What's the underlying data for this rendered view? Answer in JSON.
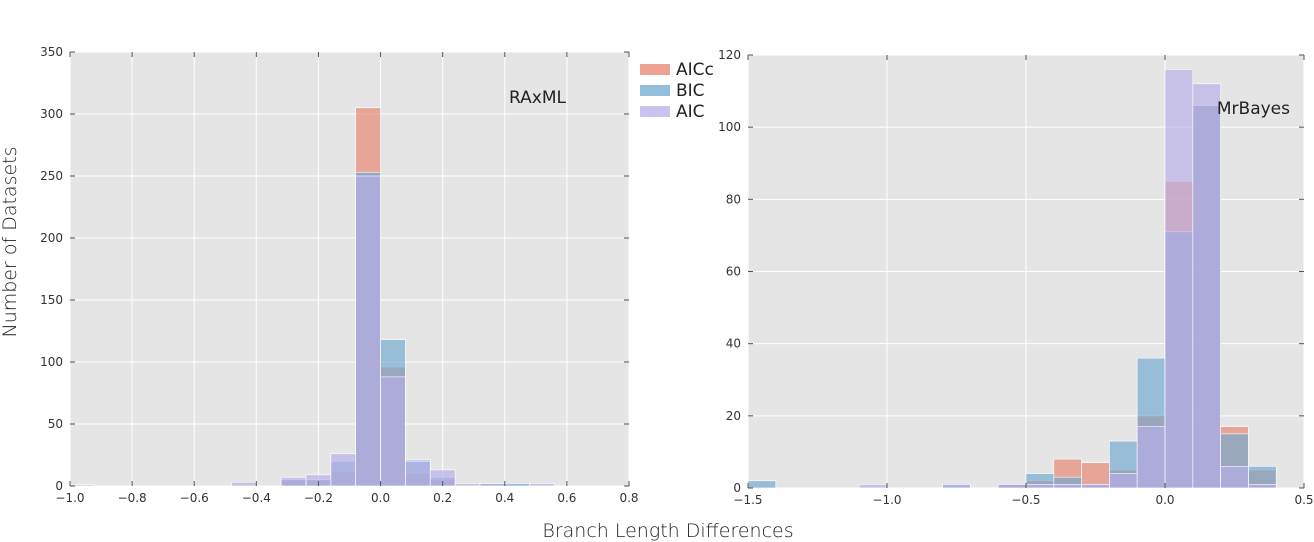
{
  "figure": {
    "ylabel": "Number of Datasets",
    "xlabel": "Branch Length Differences"
  },
  "legend": {
    "placement": "between-panels-top",
    "items": [
      {
        "label": "AICc",
        "color": "#e8836f"
      },
      {
        "label": "BIC",
        "color": "#6fa8d0"
      },
      {
        "label": "AIC",
        "color": "#b9aee8"
      }
    ]
  },
  "chart_data": [
    {
      "type": "bar",
      "panel_label": "RAxML",
      "xlim": [
        -1.0,
        0.8
      ],
      "ylim": [
        0,
        350
      ],
      "xticks": [
        "−1.0",
        "−0.8",
        "−0.6",
        "−0.4",
        "−0.2",
        "0.0",
        "0.2",
        "0.4",
        "0.6",
        "0.8"
      ],
      "yticks": [
        "0",
        "50",
        "100",
        "150",
        "200",
        "250",
        "300",
        "350"
      ],
      "xtick_values": [
        -1.0,
        -0.8,
        -0.6,
        -0.4,
        -0.2,
        0.0,
        0.2,
        0.4,
        0.6,
        0.8
      ],
      "ytick_values": [
        0,
        50,
        100,
        150,
        200,
        250,
        300,
        350
      ],
      "grid": true,
      "series": [
        {
          "name": "AICc",
          "bins": [
            {
              "x0": -0.32,
              "x1": -0.24,
              "y": 5
            },
            {
              "x0": -0.24,
              "x1": -0.16,
              "y": 5
            },
            {
              "x0": -0.16,
              "x1": -0.08,
              "y": 12
            },
            {
              "x0": -0.08,
              "x1": 0.0,
              "y": 305
            },
            {
              "x0": 0.0,
              "x1": 0.08,
              "y": 96
            },
            {
              "x0": 0.08,
              "x1": 0.16,
              "y": 10
            },
            {
              "x0": 0.16,
              "x1": 0.24,
              "y": 5
            }
          ]
        },
        {
          "name": "BIC",
          "bins": [
            {
              "x0": -0.32,
              "x1": -0.24,
              "y": 5
            },
            {
              "x0": -0.24,
              "x1": -0.16,
              "y": 5
            },
            {
              "x0": -0.16,
              "x1": -0.08,
              "y": 20
            },
            {
              "x0": -0.08,
              "x1": 0.0,
              "y": 253
            },
            {
              "x0": 0.0,
              "x1": 0.08,
              "y": 118
            },
            {
              "x0": 0.08,
              "x1": 0.16,
              "y": 21
            },
            {
              "x0": 0.16,
              "x1": 0.24,
              "y": 7
            },
            {
              "x0": 0.32,
              "x1": 0.4,
              "y": 2
            },
            {
              "x0": 0.4,
              "x1": 0.48,
              "y": 2
            }
          ]
        },
        {
          "name": "AIC",
          "bins": [
            {
              "x0": -1.0,
              "x1": -0.92,
              "y": 1
            },
            {
              "x0": -0.48,
              "x1": -0.4,
              "y": 3
            },
            {
              "x0": -0.32,
              "x1": -0.24,
              "y": 7
            },
            {
              "x0": -0.24,
              "x1": -0.16,
              "y": 9
            },
            {
              "x0": -0.16,
              "x1": -0.08,
              "y": 26
            },
            {
              "x0": -0.08,
              "x1": 0.0,
              "y": 250
            },
            {
              "x0": 0.0,
              "x1": 0.08,
              "y": 88
            },
            {
              "x0": 0.08,
              "x1": 0.16,
              "y": 20
            },
            {
              "x0": 0.16,
              "x1": 0.24,
              "y": 13
            },
            {
              "x0": 0.24,
              "x1": 0.32,
              "y": 2
            },
            {
              "x0": 0.32,
              "x1": 0.4,
              "y": 2
            },
            {
              "x0": 0.48,
              "x1": 0.56,
              "y": 2
            }
          ]
        }
      ]
    },
    {
      "type": "bar",
      "panel_label": "MrBayes",
      "xlim": [
        -1.5,
        0.5
      ],
      "ylim": [
        0,
        120
      ],
      "xticks": [
        "−1.5",
        "−1.0",
        "−0.5",
        "0.0",
        "0.5"
      ],
      "yticks": [
        "0",
        "20",
        "40",
        "60",
        "80",
        "100",
        "120"
      ],
      "xtick_values": [
        -1.5,
        -1.0,
        -0.5,
        0.0,
        0.5
      ],
      "ytick_values": [
        0,
        20,
        40,
        60,
        80,
        100,
        120
      ],
      "grid": true,
      "series": [
        {
          "name": "AICc",
          "bins": [
            {
              "x0": -0.6,
              "x1": -0.5,
              "y": 1
            },
            {
              "x0": -0.5,
              "x1": -0.4,
              "y": 2
            },
            {
              "x0": -0.4,
              "x1": -0.3,
              "y": 8
            },
            {
              "x0": -0.3,
              "x1": -0.2,
              "y": 7
            },
            {
              "x0": -0.2,
              "x1": -0.1,
              "y": 5
            },
            {
              "x0": -0.1,
              "x1": 0.0,
              "y": 20
            },
            {
              "x0": 0.0,
              "x1": 0.1,
              "y": 85
            },
            {
              "x0": 0.1,
              "x1": 0.2,
              "y": 106
            },
            {
              "x0": 0.2,
              "x1": 0.3,
              "y": 17
            },
            {
              "x0": 0.3,
              "x1": 0.4,
              "y": 5
            }
          ]
        },
        {
          "name": "BIC",
          "bins": [
            {
              "x0": -1.5,
              "x1": -1.4,
              "y": 2
            },
            {
              "x0": -0.8,
              "x1": -0.7,
              "y": 1
            },
            {
              "x0": -0.6,
              "x1": -0.5,
              "y": 1
            },
            {
              "x0": -0.5,
              "x1": -0.4,
              "y": 4
            },
            {
              "x0": -0.4,
              "x1": -0.3,
              "y": 3
            },
            {
              "x0": -0.3,
              "x1": -0.2,
              "y": 1
            },
            {
              "x0": -0.2,
              "x1": -0.1,
              "y": 13
            },
            {
              "x0": -0.1,
              "x1": 0.0,
              "y": 36
            },
            {
              "x0": 0.0,
              "x1": 0.1,
              "y": 71
            },
            {
              "x0": 0.1,
              "x1": 0.2,
              "y": 106
            },
            {
              "x0": 0.2,
              "x1": 0.3,
              "y": 15
            },
            {
              "x0": 0.3,
              "x1": 0.4,
              "y": 6
            }
          ]
        },
        {
          "name": "AIC",
          "bins": [
            {
              "x0": -1.1,
              "x1": -1.0,
              "y": 1
            },
            {
              "x0": -0.8,
              "x1": -0.7,
              "y": 1
            },
            {
              "x0": -0.6,
              "x1": -0.5,
              "y": 1
            },
            {
              "x0": -0.5,
              "x1": -0.4,
              "y": 1
            },
            {
              "x0": -0.4,
              "x1": -0.3,
              "y": 1
            },
            {
              "x0": -0.3,
              "x1": -0.2,
              "y": 1
            },
            {
              "x0": -0.2,
              "x1": -0.1,
              "y": 4
            },
            {
              "x0": -0.1,
              "x1": 0.0,
              "y": 17
            },
            {
              "x0": 0.0,
              "x1": 0.1,
              "y": 116
            },
            {
              "x0": 0.1,
              "x1": 0.2,
              "y": 112
            },
            {
              "x0": 0.2,
              "x1": 0.3,
              "y": 6
            },
            {
              "x0": 0.3,
              "x1": 0.4,
              "y": 1
            }
          ]
        }
      ]
    }
  ]
}
